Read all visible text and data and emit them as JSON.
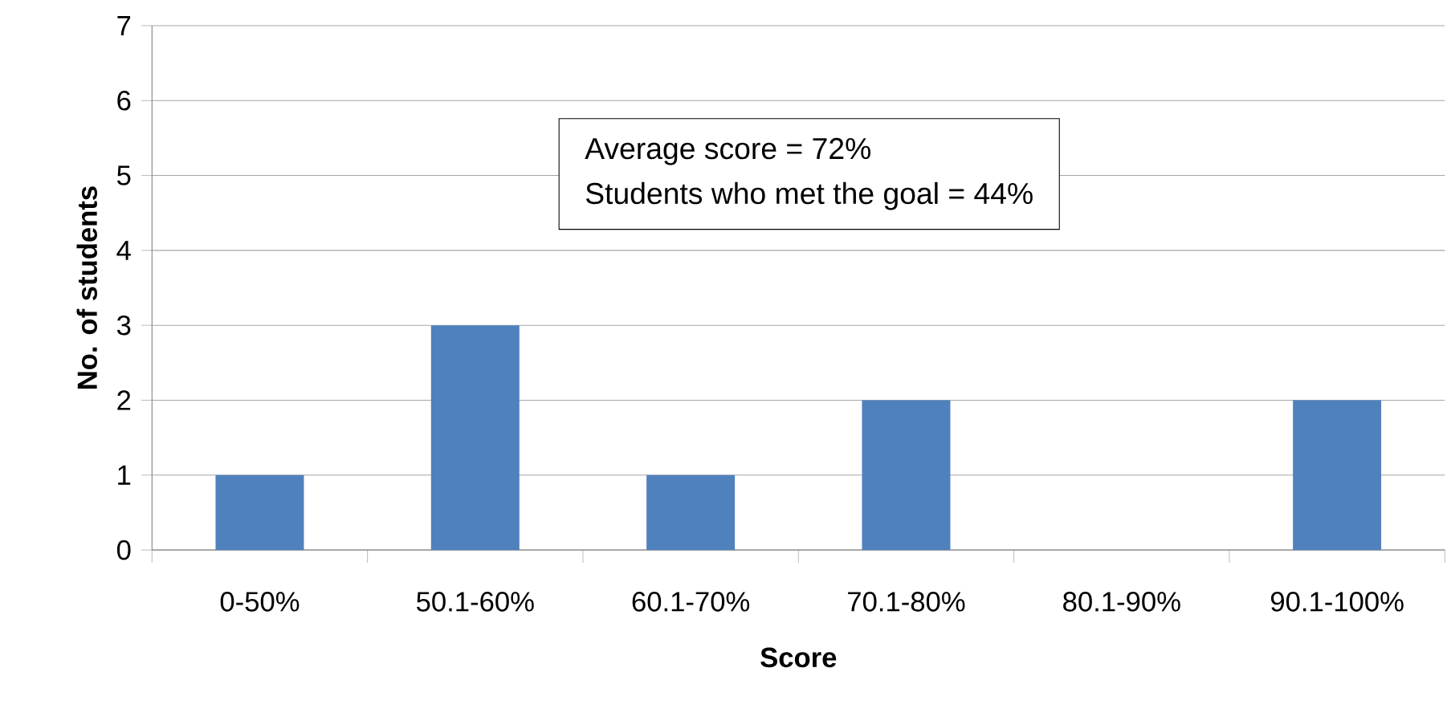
{
  "chart_data": {
    "type": "bar",
    "xlabel": "Score",
    "ylabel": "No. of students",
    "categories": [
      "0-50%",
      "50.1-60%",
      "60.1-70%",
      "70.1-80%",
      "80.1-90%",
      "90.1-100%"
    ],
    "values": [
      1,
      3,
      1,
      2,
      0,
      2
    ],
    "color": "#4f81bd",
    "ylim": [
      0,
      7
    ],
    "yticks": [
      0,
      1,
      2,
      3,
      4,
      5,
      6,
      7
    ],
    "grid": "y",
    "annotations": [
      "Average score = 72%",
      "Students who met the goal = 44%"
    ]
  }
}
